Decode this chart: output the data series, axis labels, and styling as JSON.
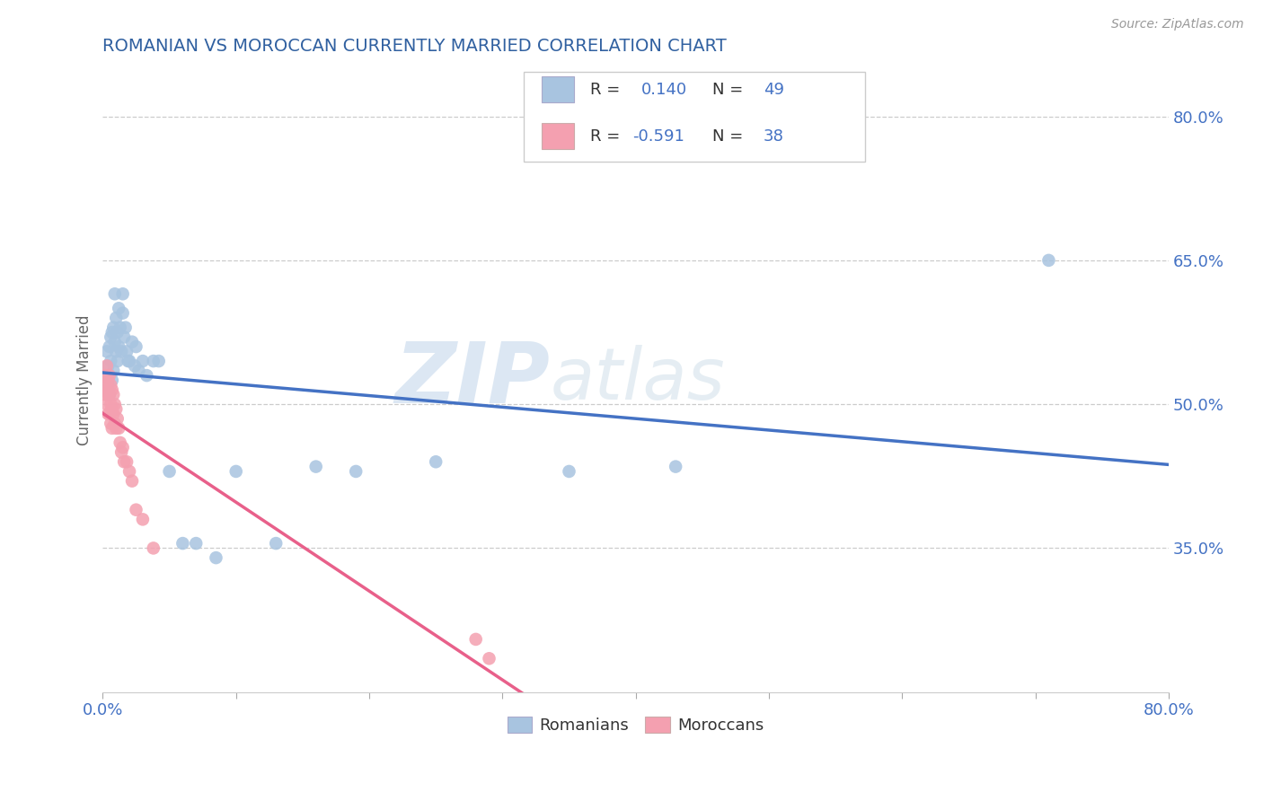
{
  "title": "ROMANIAN VS MOROCCAN CURRENTLY MARRIED CORRELATION CHART",
  "source_text": "Source: ZipAtlas.com",
  "ylabel": "Currently Married",
  "xlim": [
    0.0,
    0.8
  ],
  "ylim": [
    0.2,
    0.85
  ],
  "xtick_positions": [
    0.0,
    0.1,
    0.2,
    0.3,
    0.4,
    0.5,
    0.6,
    0.7,
    0.8
  ],
  "xticklabels_show": [
    "0.0%",
    "80.0%"
  ],
  "ytick_positions": [
    0.35,
    0.5,
    0.65,
    0.8
  ],
  "ytick_labels": [
    "35.0%",
    "50.0%",
    "65.0%",
    "80.0%"
  ],
  "watermark_zip": "ZIP",
  "watermark_atlas": "atlas",
  "romanian_color": "#a8c4e0",
  "moroccan_color": "#f4a0b0",
  "romanian_line_color": "#4472c4",
  "moroccan_line_color": "#e8608a",
  "R_romanian": 0.14,
  "N_romanian": 49,
  "R_moroccan": -0.591,
  "N_moroccan": 38,
  "legend_label_romanian": "Romanians",
  "legend_label_moroccan": "Moroccans",
  "title_color": "#3060a0",
  "axis_color": "#4472c4",
  "grid_color": "#cccccc",
  "background_color": "#ffffff",
  "romanian_x": [
    0.002,
    0.003,
    0.004,
    0.004,
    0.005,
    0.005,
    0.006,
    0.006,
    0.007,
    0.007,
    0.008,
    0.008,
    0.009,
    0.009,
    0.01,
    0.01,
    0.011,
    0.011,
    0.012,
    0.012,
    0.013,
    0.014,
    0.015,
    0.015,
    0.016,
    0.017,
    0.018,
    0.019,
    0.02,
    0.022,
    0.024,
    0.025,
    0.027,
    0.03,
    0.033,
    0.038,
    0.042,
    0.05,
    0.06,
    0.07,
    0.085,
    0.1,
    0.13,
    0.16,
    0.19,
    0.25,
    0.35,
    0.43,
    0.71
  ],
  "romanian_y": [
    0.53,
    0.555,
    0.54,
    0.52,
    0.56,
    0.51,
    0.57,
    0.545,
    0.575,
    0.525,
    0.58,
    0.535,
    0.565,
    0.615,
    0.59,
    0.555,
    0.575,
    0.545,
    0.6,
    0.56,
    0.58,
    0.555,
    0.595,
    0.615,
    0.57,
    0.58,
    0.555,
    0.545,
    0.545,
    0.565,
    0.54,
    0.56,
    0.535,
    0.545,
    0.53,
    0.545,
    0.545,
    0.43,
    0.355,
    0.355,
    0.34,
    0.43,
    0.355,
    0.435,
    0.43,
    0.44,
    0.43,
    0.435,
    0.65
  ],
  "moroccan_x": [
    0.001,
    0.002,
    0.002,
    0.003,
    0.003,
    0.003,
    0.004,
    0.004,
    0.004,
    0.005,
    0.005,
    0.005,
    0.006,
    0.006,
    0.006,
    0.007,
    0.007,
    0.007,
    0.008,
    0.008,
    0.009,
    0.009,
    0.01,
    0.01,
    0.011,
    0.012,
    0.013,
    0.014,
    0.015,
    0.016,
    0.018,
    0.02,
    0.022,
    0.025,
    0.03,
    0.038,
    0.28,
    0.29
  ],
  "moroccan_y": [
    0.52,
    0.53,
    0.51,
    0.54,
    0.515,
    0.5,
    0.525,
    0.51,
    0.49,
    0.53,
    0.51,
    0.49,
    0.52,
    0.5,
    0.48,
    0.515,
    0.495,
    0.475,
    0.51,
    0.49,
    0.5,
    0.48,
    0.495,
    0.475,
    0.485,
    0.475,
    0.46,
    0.45,
    0.455,
    0.44,
    0.44,
    0.43,
    0.42,
    0.39,
    0.38,
    0.35,
    0.255,
    0.235
  ]
}
